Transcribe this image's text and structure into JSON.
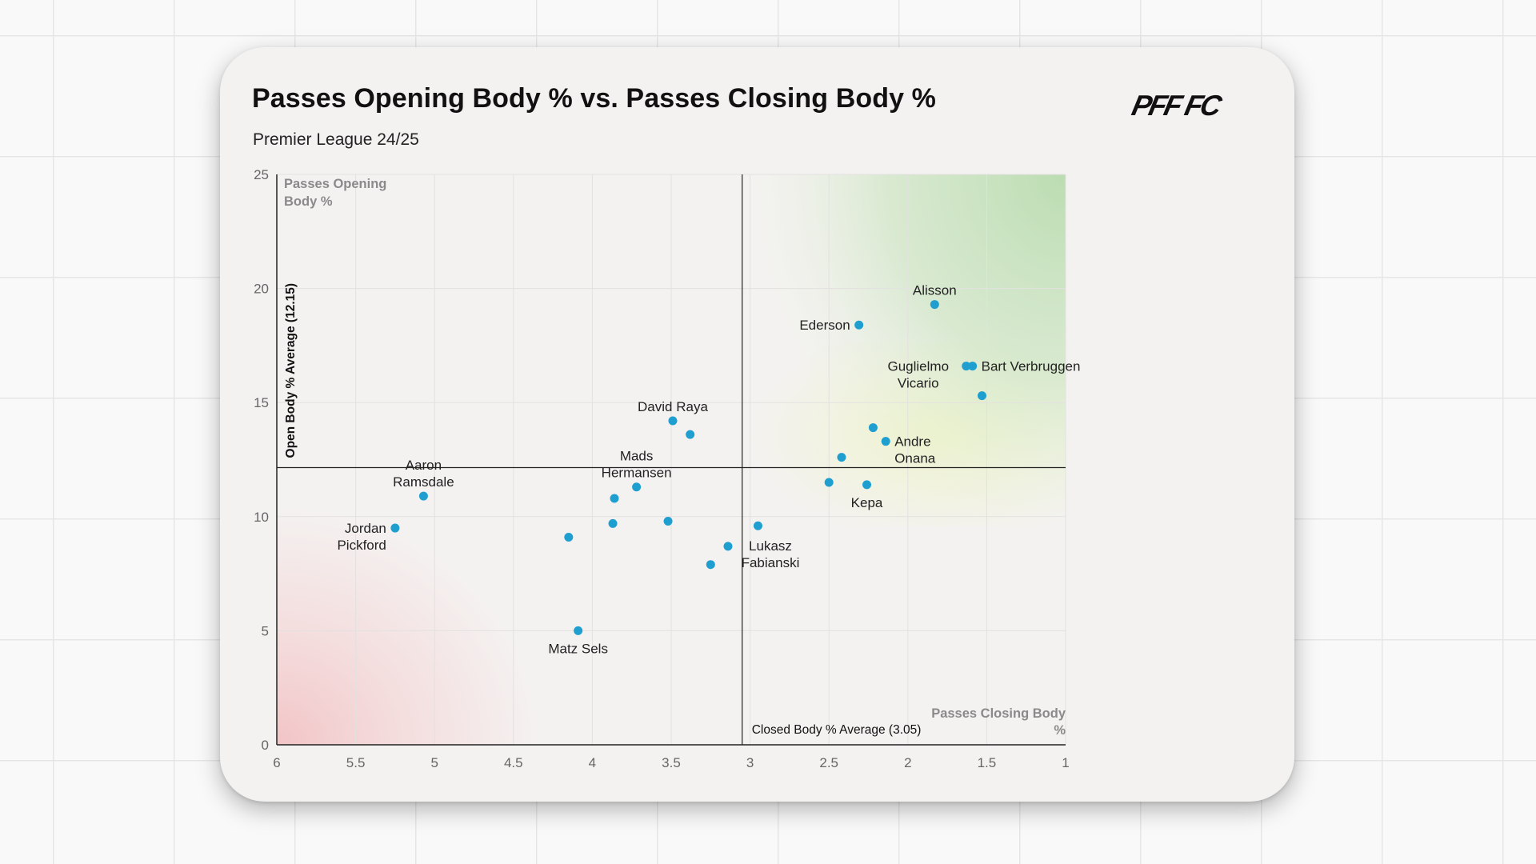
{
  "title": "Passes Opening Body % vs. Passes Closing Body %",
  "subtitle": "Premier League 24/25",
  "logo_text": "PFF FC",
  "colors": {
    "point": "#1f9fd0",
    "positive_zone": "#bfe0b4",
    "neutral_zone": "#ecf3cc",
    "negative_zone": "#f3c4c6"
  },
  "chart_data": {
    "type": "scatter",
    "title": "Passes Opening Body % vs. Passes Closing Body %",
    "xlabel": "Passes Closing Body %",
    "ylabel": "Passes Opening Body %",
    "xlim": [
      6,
      1
    ],
    "ylim": [
      0,
      25
    ],
    "x_reversed": true,
    "xticks": [
      6,
      5.5,
      5,
      4.5,
      4,
      3.5,
      3,
      2.5,
      2,
      1.5,
      1
    ],
    "yticks": [
      0,
      5,
      10,
      15,
      20,
      25
    ],
    "x_tick_labels": [
      "6",
      "5.5",
      "5",
      "4.5",
      "4",
      "3.5",
      "3",
      "2.5",
      "2",
      "1.5",
      "1"
    ],
    "y_tick_labels": [
      "0",
      "5",
      "10",
      "15",
      "20",
      "25"
    ],
    "grid": true,
    "corner_label_y": [
      "Passes Opening",
      "Body %"
    ],
    "corner_label_x": [
      "Passes Closing Body",
      "%"
    ],
    "avg_x": {
      "value": 3.05,
      "label": "Closed Body % Average (3.05)"
    },
    "avg_y": {
      "value": 12.15,
      "label": "Open Body % Average (12.15)"
    },
    "points": [
      {
        "x": 1.83,
        "y": 19.3,
        "label": [
          "Alisson"
        ],
        "anchor": "above"
      },
      {
        "x": 2.31,
        "y": 18.4,
        "label": [
          "Ederson"
        ],
        "anchor": "left"
      },
      {
        "x": 1.63,
        "y": 16.6,
        "label": [
          "Guglielmo",
          "Vicario"
        ],
        "anchor": "leftdown"
      },
      {
        "x": 1.59,
        "y": 16.6,
        "label": [
          "Bart Verbruggen"
        ],
        "anchor": "right"
      },
      {
        "x": 1.53,
        "y": 15.3,
        "label": []
      },
      {
        "x": 3.49,
        "y": 14.2,
        "label": [
          "David Raya"
        ],
        "anchor": "above"
      },
      {
        "x": 3.38,
        "y": 13.6,
        "label": []
      },
      {
        "x": 2.22,
        "y": 13.9,
        "label": []
      },
      {
        "x": 2.14,
        "y": 13.3,
        "label": [
          "Andre",
          "Onana"
        ],
        "anchor": "right"
      },
      {
        "x": 2.42,
        "y": 12.6,
        "label": []
      },
      {
        "x": 2.5,
        "y": 11.5,
        "label": []
      },
      {
        "x": 2.26,
        "y": 11.4,
        "label": [
          "Kepa"
        ],
        "anchor": "below"
      },
      {
        "x": 3.72,
        "y": 11.3,
        "label": [
          "Mads",
          "Hermansen"
        ],
        "anchor": "above"
      },
      {
        "x": 3.86,
        "y": 10.8,
        "label": []
      },
      {
        "x": 5.07,
        "y": 10.9,
        "label": [
          "Aaron",
          "Ramsdale"
        ],
        "anchor": "above"
      },
      {
        "x": 5.25,
        "y": 9.5,
        "label": [
          "Jordan",
          "Pickford"
        ],
        "anchor": "left"
      },
      {
        "x": 3.52,
        "y": 9.8,
        "label": []
      },
      {
        "x": 3.87,
        "y": 9.7,
        "label": []
      },
      {
        "x": 2.95,
        "y": 9.6,
        "label": []
      },
      {
        "x": 4.15,
        "y": 9.1,
        "label": []
      },
      {
        "x": 3.14,
        "y": 8.7,
        "label": [
          "Lukasz",
          "Fabianski"
        ],
        "anchor": "rightdown"
      },
      {
        "x": 3.25,
        "y": 7.9,
        "label": []
      },
      {
        "x": 4.09,
        "y": 5.0,
        "label": [
          "Matz Sels"
        ],
        "anchor": "below"
      }
    ]
  }
}
